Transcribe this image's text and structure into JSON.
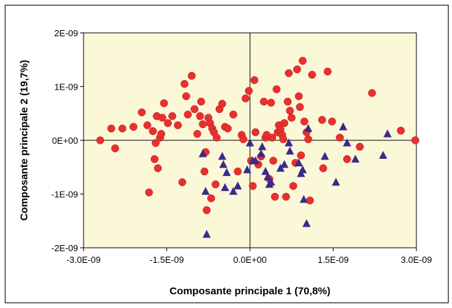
{
  "chart_data": {
    "type": "scatter",
    "title": "",
    "xlabel": "Composante principale 1 (70,8%)",
    "ylabel": "Composante principale 2 (19,7%)",
    "xlim": [
      -3e-09,
      3e-09
    ],
    "ylim": [
      -2e-09,
      2e-09
    ],
    "x_ticks": [
      -3e-09,
      -1.5e-09,
      0,
      1.5e-09,
      3e-09
    ],
    "x_tick_labels": [
      "-3.0E-09",
      "-1.5E-09",
      "0.0E+00",
      "1.5E-09",
      "3.0E-09"
    ],
    "y_ticks": [
      2e-09,
      1e-09,
      0,
      -1e-09,
      -2e-09
    ],
    "y_tick_labels": [
      "2E-09",
      "1E-09",
      "0E+00",
      "-1E-09",
      "-2E-09"
    ],
    "grid": false,
    "reference_lines": {
      "x": 0,
      "y": 0
    },
    "plot_background": "#fbf8d8",
    "series": [
      {
        "marker": "circle",
        "color": "#e8302e",
        "points": [
          [
            -2.7e-09,
            0.0
          ],
          [
            -2.5e-09,
            2.2e-10
          ],
          [
            -2.43e-09,
            -1.5e-10
          ],
          [
            -2.3e-09,
            2.2e-10
          ],
          [
            -2.1e-09,
            2.5e-10
          ],
          [
            -1.95e-09,
            5.2e-10
          ],
          [
            -1.85e-09,
            2.8e-10
          ],
          [
            -1.82e-09,
            -9.7e-10
          ],
          [
            -1.75e-09,
            1.7e-10
          ],
          [
            -1.72e-09,
            -3.5e-10
          ],
          [
            -1.7e-09,
            -5e-11
          ],
          [
            -1.68e-09,
            4.5e-10
          ],
          [
            -1.66e-09,
            -5.2e-10
          ],
          [
            -1.62e-09,
            5e-11
          ],
          [
            -1.6e-09,
            1.2e-10
          ],
          [
            -1.58e-09,
            4.2e-10
          ],
          [
            -1.55e-09,
            6.9e-10
          ],
          [
            -1.48e-09,
            3.2e-10
          ],
          [
            -1.4e-09,
            4.5e-10
          ],
          [
            -1.3e-09,
            2.8e-10
          ],
          [
            -1.22e-09,
            -7.8e-10
          ],
          [
            -1.18e-09,
            1.05e-09
          ],
          [
            -1.15e-09,
            8.2e-10
          ],
          [
            -1.12e-09,
            4.8e-10
          ],
          [
            -1.05e-09,
            1.2e-09
          ],
          [
            -1e-09,
            5.8e-10
          ],
          [
            -9.5e-10,
            1.2e-10
          ],
          [
            -9e-10,
            4.5e-10
          ],
          [
            -8.8e-10,
            7.2e-10
          ],
          [
            -8.5e-10,
            3e-10
          ],
          [
            -8.2e-10,
            -5.8e-10
          ],
          [
            -8e-10,
            -2.2e-10
          ],
          [
            -7.8e-10,
            -1.3e-09
          ],
          [
            -7.5e-10,
            4.2e-10
          ],
          [
            -7.2e-10,
            3.2e-10
          ],
          [
            -7e-10,
            -1.08e-09
          ],
          [
            -6.8e-10,
            2.2e-10
          ],
          [
            -6.5e-10,
            1.5e-10
          ],
          [
            -6.2e-10,
            -8.2e-10
          ],
          [
            -6e-10,
            5e-11
          ],
          [
            -5.5e-10,
            5.8e-10
          ],
          [
            -5e-10,
            6.8e-10
          ],
          [
            -4.5e-10,
            2.5e-10
          ],
          [
            -4e-10,
            2.2e-10
          ],
          [
            -3e-10,
            4.8e-10
          ],
          [
            -2.2e-10,
            -5.8e-10
          ],
          [
            -1.5e-10,
            1e-10
          ],
          [
            -1.2e-10,
            2e-11
          ],
          [
            -8e-11,
            7.8e-10
          ],
          [
            -2e-11,
            9.2e-10
          ],
          [
            2e-11,
            -3.8e-10
          ],
          [
            5e-11,
            -8.5e-10
          ],
          [
            8e-11,
            1.12e-09
          ],
          [
            1e-10,
            1.5e-10
          ],
          [
            1.5e-10,
            -4.5e-10
          ],
          [
            2e-10,
            -3e-10
          ],
          [
            2.5e-10,
            7.2e-10
          ],
          [
            2.8e-10,
            5e-11
          ],
          [
            3e-10,
            1e-10
          ],
          [
            3.5e-10,
            -7.2e-10
          ],
          [
            3.8e-10,
            7e-10
          ],
          [
            4e-10,
            5e-11
          ],
          [
            4.2e-10,
            -3.8e-10
          ],
          [
            4.5e-10,
            -1.05e-09
          ],
          [
            4.8e-10,
            9.5e-10
          ],
          [
            5e-10,
            1.5e-10
          ],
          [
            5.2e-10,
            2.8e-10
          ],
          [
            5.5e-10,
            2e-10
          ],
          [
            5.8e-10,
            1e-10
          ],
          [
            6e-10,
            2e-11
          ],
          [
            6.2e-10,
            3.2e-10
          ],
          [
            6.5e-10,
            -1.05e-09
          ],
          [
            6.8e-10,
            7.2e-10
          ],
          [
            7e-10,
            1.25e-09
          ],
          [
            7.2e-10,
            5.5e-10
          ],
          [
            7.5e-10,
            4.2e-10
          ],
          [
            7.8e-10,
            -8.5e-10
          ],
          [
            8.2e-10,
            -4.2e-10
          ],
          [
            8.5e-10,
            1.32e-09
          ],
          [
            8.8e-10,
            8.2e-10
          ],
          [
            9e-10,
            6.2e-10
          ],
          [
            9.2e-10,
            -2.8e-10
          ],
          [
            9.5e-10,
            1.48e-09
          ],
          [
            9.8e-10,
            3.5e-10
          ],
          [
            1.02e-09,
            1.5e-10
          ],
          [
            1.05e-09,
            2e-11
          ],
          [
            1.08e-09,
            -1.12e-09
          ],
          [
            1.12e-09,
            1.22e-09
          ],
          [
            1.3e-09,
            3.8e-10
          ],
          [
            1.32e-09,
            -5.2e-10
          ],
          [
            1.4e-09,
            1.28e-09
          ],
          [
            1.48e-09,
            3.5e-10
          ],
          [
            1.62e-09,
            5e-11
          ],
          [
            1.75e-09,
            -3.5e-10
          ],
          [
            1.98e-09,
            -1.2e-10
          ],
          [
            2.2e-09,
            8.8e-10
          ],
          [
            2.72e-09,
            1.8e-10
          ],
          [
            2.98e-09,
            0.0
          ]
        ]
      },
      {
        "marker": "triangle",
        "color": "#3a2a8c",
        "points": [
          [
            -8.5e-10,
            -2.5e-10
          ],
          [
            -8e-10,
            -9.5e-10
          ],
          [
            -7.8e-10,
            -1.75e-09
          ],
          [
            -5e-10,
            -3e-10
          ],
          [
            -4.8e-10,
            -4.5e-10
          ],
          [
            -4.5e-10,
            -8.8e-10
          ],
          [
            -4.2e-10,
            -6e-10
          ],
          [
            -3e-10,
            -9.5e-10
          ],
          [
            -2.2e-10,
            -8.5e-10
          ],
          [
            -5e-11,
            -5.5e-10
          ],
          [
            0.0,
            -5e-11
          ],
          [
            5e-11,
            -3.8e-10
          ],
          [
            1e-10,
            -3.8e-10
          ],
          [
            2e-10,
            -2.5e-10
          ],
          [
            2.2e-10,
            -1.2e-10
          ],
          [
            2.8e-10,
            -5.8e-10
          ],
          [
            3.2e-10,
            -6.8e-10
          ],
          [
            3.5e-10,
            -8.2e-10
          ],
          [
            3.8e-10,
            -7.8e-10
          ],
          [
            5.5e-10,
            -5.2e-10
          ],
          [
            6.2e-10,
            -4.5e-10
          ],
          [
            7e-10,
            -5e-11
          ],
          [
            7.2e-10,
            -2e-10
          ],
          [
            8.8e-10,
            -4.2e-10
          ],
          [
            9.2e-10,
            -6.2e-10
          ],
          [
            9.5e-10,
            -5.5e-10
          ],
          [
            9.7e-10,
            -1.1e-09
          ],
          [
            1.02e-09,
            -1.55e-09
          ],
          [
            1.05e-09,
            2.2e-10
          ],
          [
            1.35e-09,
            -3e-10
          ],
          [
            1.55e-09,
            -7.8e-10
          ],
          [
            1.68e-09,
            2.5e-10
          ],
          [
            1.75e-09,
            -5e-11
          ],
          [
            1.9e-09,
            -3.5e-10
          ],
          [
            2.4e-09,
            -2.8e-10
          ],
          [
            2.48e-09,
            1.2e-10
          ]
        ]
      }
    ]
  }
}
